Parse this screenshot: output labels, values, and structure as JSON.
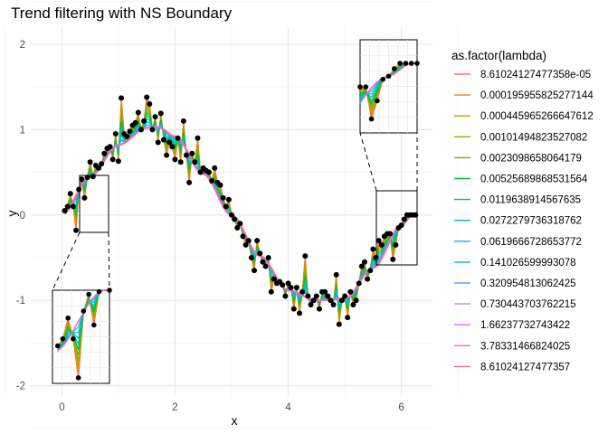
{
  "chart_data": {
    "type": "line",
    "title": "Trend filtering with NS Boundary",
    "xlabel": "x",
    "ylabel": "y",
    "xlim": [
      -0.55,
      6.55
    ],
    "ylim": [
      -2.12,
      2.2
    ],
    "x_ticks": [
      0,
      2,
      4,
      6
    ],
    "x_tick_labels": [
      "0",
      "2",
      "4",
      "6"
    ],
    "y_ticks": [
      -2,
      -1,
      0,
      1,
      2
    ],
    "y_tick_labels": [
      "-2",
      "-1",
      "0",
      "1",
      "2"
    ],
    "grid": true,
    "legend": {
      "title": "as.factor(lambda)",
      "position": "right"
    },
    "series": [
      {
        "name": "8.61024127477358e-05",
        "color": "#F8766D"
      },
      {
        "name": "0.000195955825277144",
        "color": "#E58700"
      },
      {
        "name": "0.000445965266647612",
        "color": "#C99800"
      },
      {
        "name": "0.00101494823527082",
        "color": "#A3A500"
      },
      {
        "name": "0.0023098658064179",
        "color": "#6BB100"
      },
      {
        "name": "0.00525689868531564",
        "color": "#00BA38"
      },
      {
        "name": "0.0119638914567635",
        "color": "#00BF7D"
      },
      {
        "name": "0.0272279736318762",
        "color": "#00C0AF"
      },
      {
        "name": "0.0619666728653772",
        "color": "#00BCD8"
      },
      {
        "name": "0.141026599993078",
        "color": "#00B0F6"
      },
      {
        "name": "0.320954813062425",
        "color": "#619CFF"
      },
      {
        "name": "0.730443703762215",
        "color": "#B983FF"
      },
      {
        "name": "1.66237732743422",
        "color": "#E76BF3"
      },
      {
        "name": "3.78331466824025",
        "color": "#FD61D1"
      },
      {
        "name": "8.61024127477357",
        "color": "#FF67A4"
      }
    ],
    "points": {
      "x": [
        0.05,
        0.1,
        0.15,
        0.2,
        0.25,
        0.3,
        0.35,
        0.4,
        0.45,
        0.5,
        0.55,
        0.6,
        0.65,
        0.7,
        0.75,
        0.8,
        0.85,
        0.9,
        0.95,
        1.0,
        1.05,
        1.1,
        1.15,
        1.2,
        1.25,
        1.3,
        1.35,
        1.4,
        1.45,
        1.5,
        1.55,
        1.6,
        1.65,
        1.7,
        1.75,
        1.8,
        1.85,
        1.9,
        1.95,
        2.0,
        2.05,
        2.1,
        2.15,
        2.2,
        2.25,
        2.3,
        2.35,
        2.4,
        2.45,
        2.5,
        2.55,
        2.6,
        2.65,
        2.7,
        2.75,
        2.8,
        2.85,
        2.9,
        2.95,
        3.0,
        3.05,
        3.1,
        3.15,
        3.2,
        3.25,
        3.3,
        3.35,
        3.4,
        3.45,
        3.5,
        3.55,
        3.6,
        3.65,
        3.7,
        3.75,
        3.8,
        3.85,
        3.9,
        3.95,
        4.0,
        4.05,
        4.1,
        4.15,
        4.2,
        4.25,
        4.3,
        4.35,
        4.4,
        4.45,
        4.5,
        4.55,
        4.6,
        4.65,
        4.7,
        4.75,
        4.8,
        4.85,
        4.9,
        4.95,
        5.0,
        5.05,
        5.1,
        5.15,
        5.2,
        5.25,
        5.3,
        5.35,
        5.4,
        5.45,
        5.5,
        5.55,
        5.6,
        5.65,
        5.7,
        5.75,
        5.8,
        5.85,
        5.9,
        5.95,
        6.0,
        6.05,
        6.1,
        6.15,
        6.2,
        6.25
      ],
      "y": [
        0.05,
        0.1,
        0.25,
        0.1,
        -0.18,
        0.3,
        0.42,
        0.2,
        0.44,
        0.62,
        0.45,
        0.58,
        0.55,
        0.6,
        0.72,
        0.78,
        0.8,
        0.65,
        0.95,
        0.63,
        1.37,
        0.95,
        0.92,
        0.98,
        1.05,
        1.08,
        1.2,
        1.0,
        1.1,
        1.38,
        1.3,
        1.0,
        1.15,
        0.85,
        1.19,
        0.88,
        0.7,
        0.85,
        0.8,
        0.65,
        0.9,
        0.62,
        1.1,
        0.7,
        0.38,
        0.72,
        0.62,
        0.9,
        0.5,
        0.55,
        0.52,
        0.5,
        0.4,
        0.55,
        0.38,
        0.35,
        0.2,
        0.1,
        0.18,
        0.0,
        -0.05,
        -0.15,
        -0.1,
        -0.25,
        -0.35,
        -0.3,
        -0.5,
        -0.65,
        -0.3,
        -0.45,
        -0.55,
        -0.6,
        -0.5,
        -0.9,
        -0.75,
        -0.8,
        -0.78,
        -0.82,
        -0.95,
        -0.8,
        -0.85,
        -1.1,
        -0.85,
        -1.15,
        -0.9,
        -0.48,
        -0.95,
        -1.05,
        -1.0,
        -0.95,
        -1.1,
        -0.9,
        -0.9,
        -0.95,
        -1.0,
        -1.05,
        -0.7,
        -1.28,
        -1.0,
        -0.95,
        -1.2,
        -0.9,
        -1.05,
        -1.0,
        -0.8,
        -0.6,
        -0.55,
        -0.75,
        -0.65,
        -0.4,
        -0.5,
        -0.3,
        -0.35,
        -0.25,
        -0.22,
        -0.22,
        -0.52,
        -0.35,
        -0.15,
        -0.12,
        -0.05,
        0.0,
        0.0,
        0.0,
        0.0
      ]
    },
    "fit_trend": {
      "x": [
        0,
        0.5,
        1,
        1.5,
        1.7,
        2,
        2.5,
        3,
        3.5,
        4,
        4.5,
        5,
        5.5,
        6,
        6.2
      ],
      "y": [
        0.0,
        0.45,
        0.82,
        1.02,
        1.03,
        0.92,
        0.48,
        0.0,
        -0.48,
        -0.88,
        -1.0,
        -0.98,
        -0.62,
        -0.12,
        0.0
      ]
    }
  }
}
